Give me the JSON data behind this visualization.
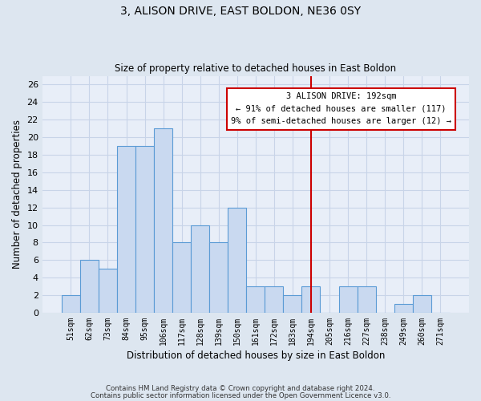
{
  "title": "3, ALISON DRIVE, EAST BOLDON, NE36 0SY",
  "subtitle": "Size of property relative to detached houses in East Boldon",
  "xlabel": "Distribution of detached houses by size in East Boldon",
  "ylabel": "Number of detached properties",
  "categories": [
    "51sqm",
    "62sqm",
    "73sqm",
    "84sqm",
    "95sqm",
    "106sqm",
    "117sqm",
    "128sqm",
    "139sqm",
    "150sqm",
    "161sqm",
    "172sqm",
    "183sqm",
    "194sqm",
    "205sqm",
    "216sqm",
    "227sqm",
    "238sqm",
    "249sqm",
    "260sqm",
    "271sqm"
  ],
  "values": [
    2,
    6,
    5,
    19,
    19,
    21,
    8,
    10,
    8,
    12,
    3,
    3,
    2,
    3,
    0,
    3,
    3,
    0,
    1,
    2,
    0
  ],
  "bar_color": "#c9d9f0",
  "bar_edge_color": "#5b9bd5",
  "vline_x_index": 13,
  "vline_color": "#cc0000",
  "annotation_title": "3 ALISON DRIVE: 192sqm",
  "annotation_line1": "← 91% of detached houses are smaller (117)",
  "annotation_line2": "9% of semi-detached houses are larger (12) →",
  "annotation_box_color": "#ffffff",
  "annotation_box_edge": "#cc0000",
  "ylim": [
    0,
    27
  ],
  "yticks": [
    0,
    2,
    4,
    6,
    8,
    10,
    12,
    14,
    16,
    18,
    20,
    22,
    24,
    26
  ],
  "background_color": "#dde6f0",
  "plot_bg_color": "#e8eef8",
  "grid_color": "#c8d4e8",
  "footnote1": "Contains HM Land Registry data © Crown copyright and database right 2024.",
  "footnote2": "Contains public sector information licensed under the Open Government Licence v3.0."
}
